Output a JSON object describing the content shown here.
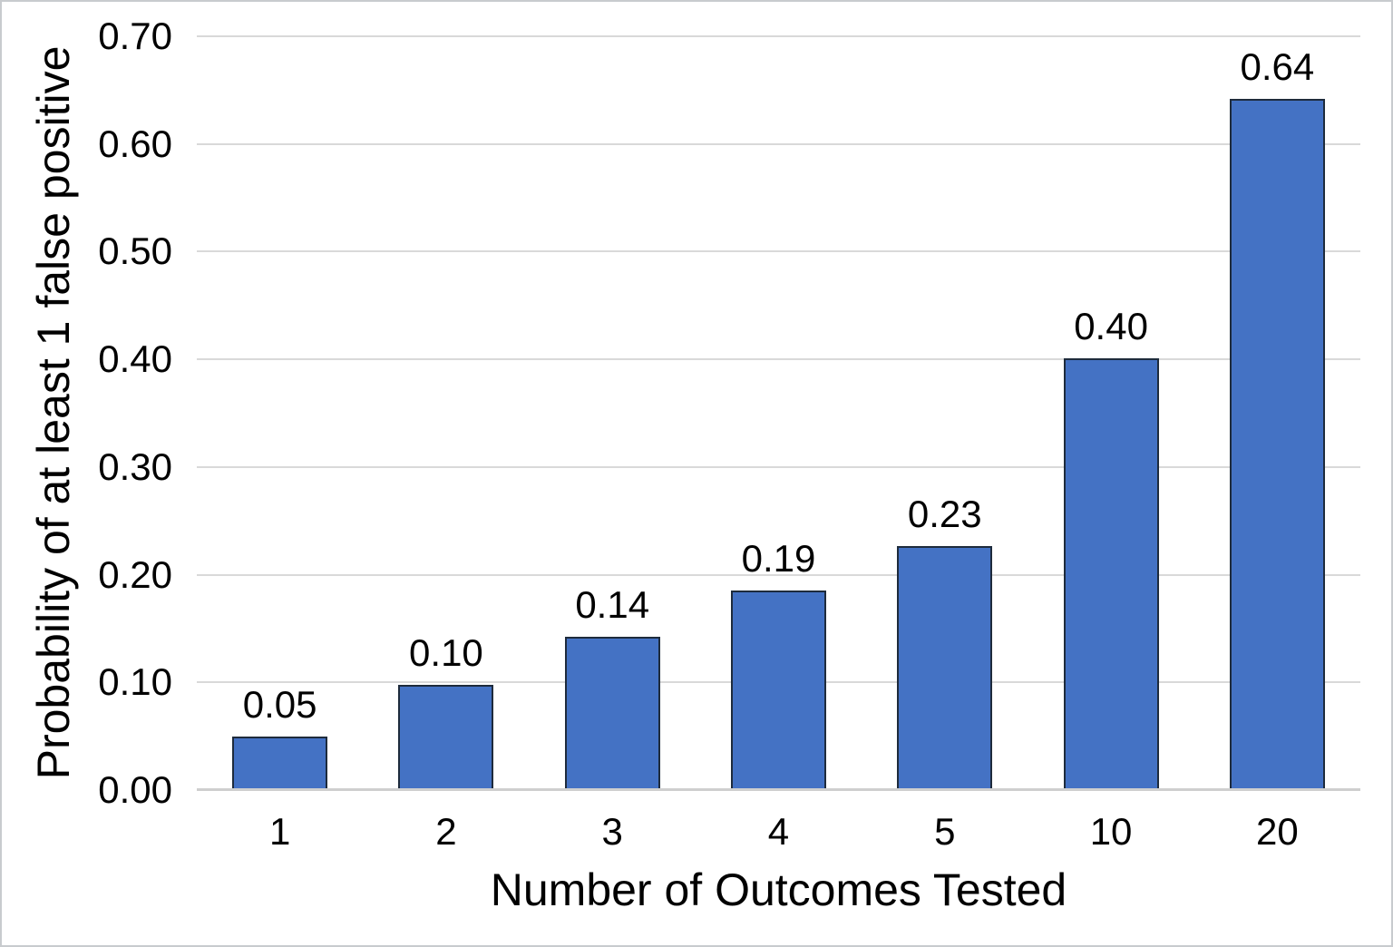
{
  "chart_data": {
    "type": "bar",
    "title": "",
    "xlabel": "Number of Outcomes Tested",
    "ylabel": "Probability of at least 1 false positive",
    "categories": [
      "1",
      "2",
      "3",
      "4",
      "5",
      "10",
      "20"
    ],
    "values": [
      0.05,
      0.0975,
      0.1426,
      0.1855,
      0.2262,
      0.4013,
      0.6415
    ],
    "value_labels": [
      "0.05",
      "0.10",
      "0.14",
      "0.19",
      "0.23",
      "0.40",
      "0.64"
    ],
    "ylim": [
      0.0,
      0.7
    ],
    "ytick_step": 0.1,
    "ytick_labels": [
      "0.00",
      "0.10",
      "0.20",
      "0.30",
      "0.40",
      "0.50",
      "0.60",
      "0.70"
    ],
    "grid": "horizontal-only",
    "legend": "none",
    "colors": {
      "bar_fill": "#4472C4",
      "bar_border": "#1E2B3C",
      "gridline": "#D9D9D9",
      "axis_line": "#CFCFCF",
      "text": "#000000",
      "background": "#FFFFFF",
      "canvas_border": "#C8CBCE"
    }
  }
}
